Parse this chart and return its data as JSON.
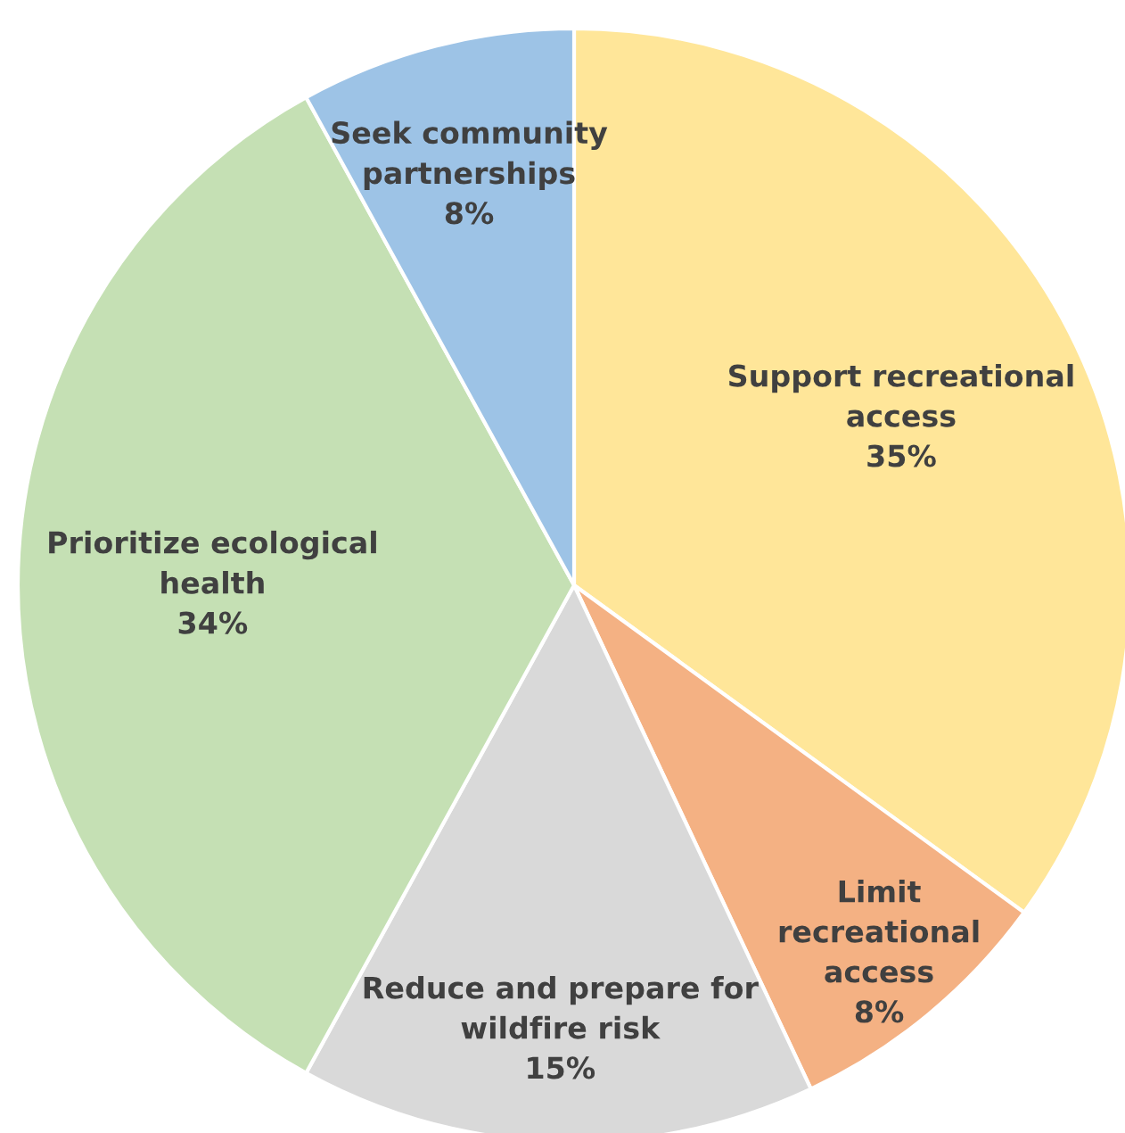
{
  "chart_data": {
    "type": "pie",
    "categories": [
      "Support recreational\naccess",
      "Limit\nrecreational\naccess",
      "Reduce and prepare for\nwildfire risk",
      "Prioritize ecological\nhealth",
      "Seek community\npartnerships"
    ],
    "values": [
      35,
      8,
      15,
      34,
      8
    ],
    "value_labels": [
      "35%",
      "8%",
      "15%",
      "34%",
      "8%"
    ],
    "colors": [
      "#ffe699",
      "#f4b183",
      "#d9d9d9",
      "#c5e0b4",
      "#9dc3e6"
    ]
  }
}
